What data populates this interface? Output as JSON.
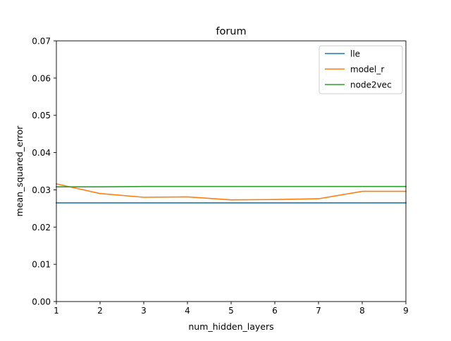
{
  "chart_data": {
    "type": "line",
    "title": "forum",
    "xlabel": "num_hidden_layers",
    "ylabel": "mean_squared_error",
    "xlim": [
      1,
      9
    ],
    "ylim": [
      0,
      0.07
    ],
    "x": [
      1,
      2,
      3,
      4,
      5,
      6,
      7,
      8,
      9
    ],
    "xticks": [
      "1",
      "2",
      "3",
      "4",
      "5",
      "6",
      "7",
      "8",
      "9"
    ],
    "yticks": [
      "0.00",
      "0.01",
      "0.02",
      "0.03",
      "0.04",
      "0.05",
      "0.06",
      "0.07"
    ],
    "ytick_values": [
      0,
      0.01,
      0.02,
      0.03,
      0.04,
      0.05,
      0.06,
      0.07
    ],
    "grid": false,
    "legend_position": "top-right",
    "series": [
      {
        "name": "lle",
        "color": "#1f77b4",
        "values": [
          0.0265,
          0.0265,
          0.0265,
          0.0265,
          0.0265,
          0.0265,
          0.0265,
          0.0265,
          0.0265
        ]
      },
      {
        "name": "model_r",
        "color": "#ff7f0e",
        "values": [
          0.0316,
          0.029,
          0.028,
          0.0281,
          0.0273,
          0.0274,
          0.0276,
          0.0296,
          0.0296
        ]
      },
      {
        "name": "node2vec",
        "color": "#2ca02c",
        "values": [
          0.0308,
          0.0308,
          0.0309,
          0.0309,
          0.0309,
          0.0309,
          0.0309,
          0.0309,
          0.0309
        ]
      }
    ]
  }
}
